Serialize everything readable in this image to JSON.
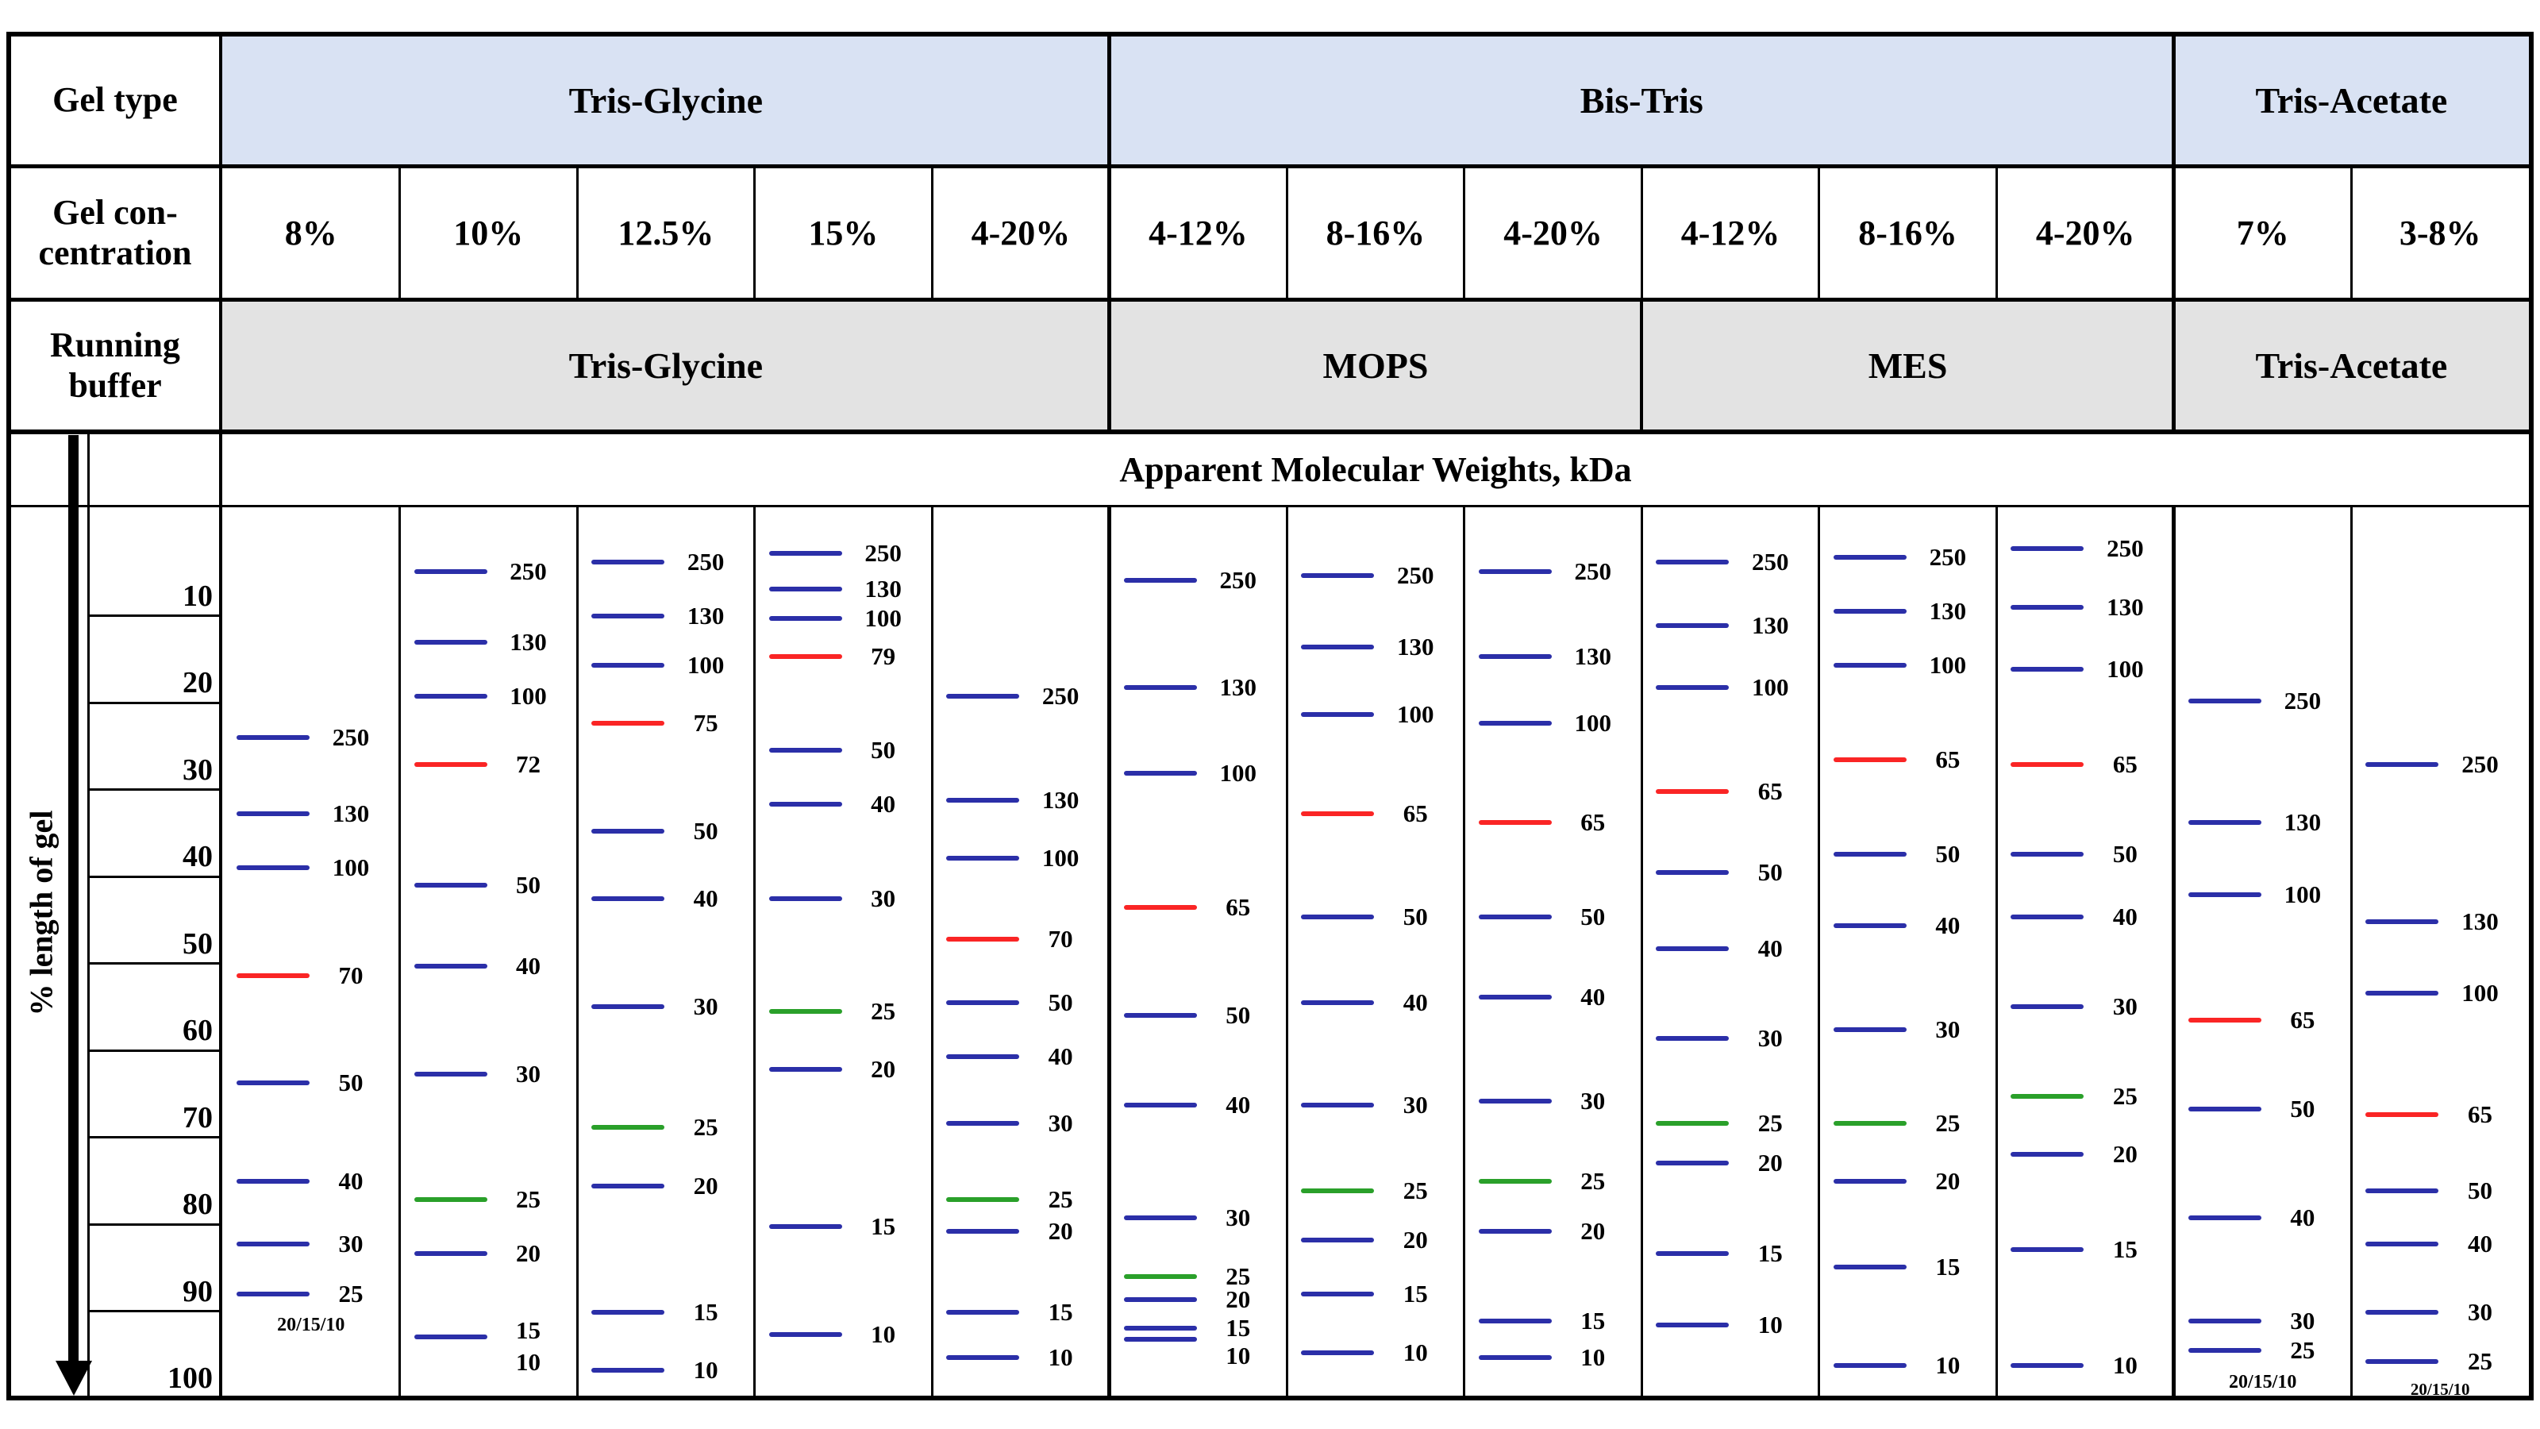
{
  "labels": {
    "gel_type": "Gel type",
    "gel_concentration": "Gel con-\ncentration",
    "running_buffer": "Running\nbuffer"
  },
  "mw_title": "Apparent Molecular Weights, kDa",
  "axis": {
    "label": "% length of gel",
    "ticks": [
      10,
      20,
      30,
      40,
      50,
      60,
      70,
      80,
      90,
      100
    ]
  },
  "gel_type_groups": [
    {
      "label": "Tris-Glycine",
      "start": 0,
      "end": 5
    },
    {
      "label": "Bis-Tris",
      "start": 5,
      "end": 11
    },
    {
      "label": "Tris-Acetate",
      "start": 11,
      "end": 13
    }
  ],
  "running_buffer_groups": [
    {
      "label": "Tris-Glycine",
      "start": 0,
      "end": 5
    },
    {
      "label": "MOPS",
      "start": 5,
      "end": 8
    },
    {
      "label": "MES",
      "start": 8,
      "end": 11
    },
    {
      "label": "Tris-Acetate",
      "start": 11,
      "end": 13
    }
  ],
  "concentrations": [
    "8%",
    "10%",
    "12.5%",
    "15%",
    "4-20%",
    "4-12%",
    "8-16%",
    "4-20%",
    "4-12%",
    "8-16%",
    "4-20%",
    "7%",
    "3-8%"
  ],
  "colors": {
    "header_blue": "#d9e2f3",
    "header_gray": "#e3e3e3",
    "border": "#000000",
    "band_blue": "#2b2fa8",
    "band_red": "#fa2525",
    "band_green": "#2aa02a"
  },
  "chart_data": {
    "type": "table",
    "note_meaning": "bands: kda = molecular weight label, pct = % length of gel from top, color = band color",
    "lanes": [
      {
        "gel": "Tris-Glycine",
        "concentration": "8%",
        "buffer": "Tris-Glycine",
        "bands": [
          {
            "kda": "250",
            "pct": 24,
            "color": "blue"
          },
          {
            "kda": "130",
            "pct": 32.8,
            "color": "blue"
          },
          {
            "kda": "100",
            "pct": 39,
            "color": "blue"
          },
          {
            "kda": "70",
            "pct": 51.4,
            "color": "red"
          },
          {
            "kda": "50",
            "pct": 63.7,
            "color": "blue"
          },
          {
            "kda": "40",
            "pct": 75.1,
            "color": "blue"
          },
          {
            "kda": "30",
            "pct": 82.3,
            "color": "blue"
          },
          {
            "kda": "25",
            "pct": 88,
            "color": "blue"
          }
        ],
        "note": {
          "text": "20/15/10",
          "pct": 91.6
        }
      },
      {
        "gel": "Tris-Glycine",
        "concentration": "10%",
        "buffer": "Tris-Glycine",
        "bands": [
          {
            "kda": "250",
            "pct": 4.9,
            "color": "blue"
          },
          {
            "kda": "130",
            "pct": 13.1,
            "color": "blue"
          },
          {
            "kda": "100",
            "pct": 19.3,
            "color": "blue"
          },
          {
            "kda": "72",
            "pct": 27.1,
            "color": "red"
          },
          {
            "kda": "50",
            "pct": 41,
            "color": "blue"
          },
          {
            "kda": "40",
            "pct": 50.3,
            "color": "blue"
          },
          {
            "kda": "30",
            "pct": 62.7,
            "color": "blue"
          },
          {
            "kda": "25",
            "pct": 77.2,
            "color": "green"
          },
          {
            "kda": "20",
            "pct": 83.4,
            "color": "blue"
          },
          {
            "kda": "15",
            "pct": 93,
            "color": "blue",
            "label_pct": 92.2
          },
          {
            "kda": "10",
            "pct": 95.9,
            "color": "blue",
            "label_only": true
          }
        ]
      },
      {
        "gel": "Tris-Glycine",
        "concentration": "12.5%",
        "buffer": "Tris-Glycine",
        "bands": [
          {
            "kda": "250",
            "pct": 3.8,
            "color": "blue"
          },
          {
            "kda": "130",
            "pct": 10,
            "color": "blue"
          },
          {
            "kda": "100",
            "pct": 15.7,
            "color": "blue"
          },
          {
            "kda": "75",
            "pct": 22.4,
            "color": "red"
          },
          {
            "kda": "50",
            "pct": 34.8,
            "color": "blue"
          },
          {
            "kda": "40",
            "pct": 42.6,
            "color": "blue"
          },
          {
            "kda": "30",
            "pct": 55,
            "color": "blue"
          },
          {
            "kda": "25",
            "pct": 68.9,
            "color": "green"
          },
          {
            "kda": "20",
            "pct": 75.6,
            "color": "blue"
          },
          {
            "kda": "15",
            "pct": 90.1,
            "color": "blue"
          },
          {
            "kda": "10",
            "pct": 96.8,
            "color": "blue"
          }
        ]
      },
      {
        "gel": "Tris-Glycine",
        "concentration": "15%",
        "buffer": "Tris-Glycine",
        "bands": [
          {
            "kda": "250",
            "pct": 2.8,
            "color": "blue"
          },
          {
            "kda": "130",
            "pct": 6.9,
            "color": "blue"
          },
          {
            "kda": "100",
            "pct": 10.3,
            "color": "blue"
          },
          {
            "kda": "79",
            "pct": 14.7,
            "color": "red"
          },
          {
            "kda": "50",
            "pct": 25.5,
            "color": "blue"
          },
          {
            "kda": "40",
            "pct": 31.7,
            "color": "blue"
          },
          {
            "kda": "30",
            "pct": 42.6,
            "color": "blue"
          },
          {
            "kda": "25",
            "pct": 55.5,
            "color": "green"
          },
          {
            "kda": "20",
            "pct": 62.2,
            "color": "blue"
          },
          {
            "kda": "15",
            "pct": 80.3,
            "color": "blue"
          },
          {
            "kda": "10",
            "pct": 92.7,
            "color": "blue"
          }
        ]
      },
      {
        "gel": "Tris-Glycine",
        "concentration": "4-20%",
        "buffer": "Tris-Glycine",
        "bands": [
          {
            "kda": "250",
            "pct": 19.3,
            "color": "blue"
          },
          {
            "kda": "130",
            "pct": 31.2,
            "color": "blue"
          },
          {
            "kda": "100",
            "pct": 37.9,
            "color": "blue"
          },
          {
            "kda": "70",
            "pct": 47.2,
            "color": "red"
          },
          {
            "kda": "50",
            "pct": 54.5,
            "color": "blue"
          },
          {
            "kda": "40",
            "pct": 60.7,
            "color": "blue"
          },
          {
            "kda": "30",
            "pct": 68.4,
            "color": "blue"
          },
          {
            "kda": "25",
            "pct": 77.2,
            "color": "green"
          },
          {
            "kda": "20",
            "pct": 80.8,
            "color": "blue"
          },
          {
            "kda": "15",
            "pct": 90.1,
            "color": "blue"
          },
          {
            "kda": "10",
            "pct": 95.3,
            "color": "blue"
          }
        ]
      },
      {
        "gel": "Bis-Tris",
        "concentration": "4-12%",
        "buffer": "MOPS",
        "bands": [
          {
            "kda": "250",
            "pct": 5.9,
            "color": "blue"
          },
          {
            "kda": "130",
            "pct": 18.3,
            "color": "blue"
          },
          {
            "kda": "100",
            "pct": 28.1,
            "color": "blue"
          },
          {
            "kda": "65",
            "pct": 43.6,
            "color": "red"
          },
          {
            "kda": "50",
            "pct": 56,
            "color": "blue"
          },
          {
            "kda": "40",
            "pct": 66.3,
            "color": "blue"
          },
          {
            "kda": "30",
            "pct": 79.3,
            "color": "blue"
          },
          {
            "kda": "25",
            "pct": 86,
            "color": "green"
          },
          {
            "kda": "20",
            "pct": 88.7,
            "color": "blue"
          },
          {
            "kda": "15",
            "pct": 92,
            "color": "blue"
          },
          {
            "kda": "10",
            "pct": 93.2,
            "color": "blue",
            "label_pct": 95.2
          }
        ]
      },
      {
        "gel": "Bis-Tris",
        "concentration": "8-16%",
        "buffer": "MOPS",
        "bands": [
          {
            "kda": "250",
            "pct": 5.4,
            "color": "blue"
          },
          {
            "kda": "130",
            "pct": 13.6,
            "color": "blue"
          },
          {
            "kda": "100",
            "pct": 21.4,
            "color": "blue"
          },
          {
            "kda": "65",
            "pct": 32.8,
            "color": "red"
          },
          {
            "kda": "50",
            "pct": 44.7,
            "color": "blue"
          },
          {
            "kda": "40",
            "pct": 54.5,
            "color": "blue"
          },
          {
            "kda": "30",
            "pct": 66.3,
            "color": "blue"
          },
          {
            "kda": "25",
            "pct": 76.2,
            "color": "green"
          },
          {
            "kda": "20",
            "pct": 81.8,
            "color": "blue"
          },
          {
            "kda": "15",
            "pct": 88,
            "color": "blue"
          },
          {
            "kda": "10",
            "pct": 94.8,
            "color": "blue"
          }
        ]
      },
      {
        "gel": "Bis-Tris",
        "concentration": "4-20%",
        "buffer": "MOPS",
        "bands": [
          {
            "kda": "250",
            "pct": 4.9,
            "color": "blue"
          },
          {
            "kda": "130",
            "pct": 14.7,
            "color": "blue"
          },
          {
            "kda": "100",
            "pct": 22.4,
            "color": "blue"
          },
          {
            "kda": "65",
            "pct": 33.8,
            "color": "red"
          },
          {
            "kda": "50",
            "pct": 44.7,
            "color": "blue"
          },
          {
            "kda": "40",
            "pct": 53.9,
            "color": "blue"
          },
          {
            "kda": "30",
            "pct": 65.8,
            "color": "blue"
          },
          {
            "kda": "25",
            "pct": 75.1,
            "color": "green"
          },
          {
            "kda": "20",
            "pct": 80.8,
            "color": "blue"
          },
          {
            "kda": "15",
            "pct": 91.1,
            "color": "blue"
          },
          {
            "kda": "10",
            "pct": 95.3,
            "color": "blue"
          }
        ]
      },
      {
        "gel": "Bis-Tris",
        "concentration": "4-12%",
        "buffer": "MES",
        "bands": [
          {
            "kda": "250",
            "pct": 3.8,
            "color": "blue"
          },
          {
            "kda": "130",
            "pct": 11.1,
            "color": "blue"
          },
          {
            "kda": "100",
            "pct": 18.3,
            "color": "blue"
          },
          {
            "kda": "65",
            "pct": 30.2,
            "color": "red"
          },
          {
            "kda": "50",
            "pct": 39.5,
            "color": "blue"
          },
          {
            "kda": "40",
            "pct": 48.3,
            "color": "blue"
          },
          {
            "kda": "30",
            "pct": 58.6,
            "color": "blue"
          },
          {
            "kda": "25",
            "pct": 68.4,
            "color": "green"
          },
          {
            "kda": "20",
            "pct": 73,
            "color": "blue"
          },
          {
            "kda": "15",
            "pct": 83.4,
            "color": "blue"
          },
          {
            "kda": "10",
            "pct": 91.6,
            "color": "blue"
          }
        ]
      },
      {
        "gel": "Bis-Tris",
        "concentration": "8-16%",
        "buffer": "MES",
        "bands": [
          {
            "kda": "250",
            "pct": 3.3,
            "color": "blue"
          },
          {
            "kda": "130",
            "pct": 9.5,
            "color": "blue"
          },
          {
            "kda": "100",
            "pct": 15.7,
            "color": "blue"
          },
          {
            "kda": "65",
            "pct": 26.6,
            "color": "red"
          },
          {
            "kda": "50",
            "pct": 37.4,
            "color": "blue"
          },
          {
            "kda": "40",
            "pct": 45.7,
            "color": "blue"
          },
          {
            "kda": "30",
            "pct": 57.6,
            "color": "blue"
          },
          {
            "kda": "25",
            "pct": 68.4,
            "color": "green"
          },
          {
            "kda": "20",
            "pct": 75.1,
            "color": "blue"
          },
          {
            "kda": "15",
            "pct": 84.9,
            "color": "blue"
          },
          {
            "kda": "10",
            "pct": 96.3,
            "color": "blue"
          }
        ]
      },
      {
        "gel": "Bis-Tris",
        "concentration": "4-20%",
        "buffer": "MES",
        "bands": [
          {
            "kda": "250",
            "pct": 2.3,
            "color": "blue"
          },
          {
            "kda": "130",
            "pct": 9,
            "color": "blue"
          },
          {
            "kda": "100",
            "pct": 16.2,
            "color": "blue"
          },
          {
            "kda": "65",
            "pct": 27.1,
            "color": "red"
          },
          {
            "kda": "50",
            "pct": 37.4,
            "color": "blue"
          },
          {
            "kda": "40",
            "pct": 44.7,
            "color": "blue"
          },
          {
            "kda": "30",
            "pct": 55,
            "color": "blue"
          },
          {
            "kda": "25",
            "pct": 65.3,
            "color": "green"
          },
          {
            "kda": "20",
            "pct": 72,
            "color": "blue"
          },
          {
            "kda": "15",
            "pct": 82.9,
            "color": "blue"
          },
          {
            "kda": "10",
            "pct": 96.3,
            "color": "blue"
          }
        ]
      },
      {
        "gel": "Tris-Acetate",
        "concentration": "7%",
        "buffer": "Tris-Acetate",
        "bands": [
          {
            "kda": "250",
            "pct": 19.8,
            "color": "blue"
          },
          {
            "kda": "130",
            "pct": 33.8,
            "color": "blue"
          },
          {
            "kda": "100",
            "pct": 42.1,
            "color": "blue"
          },
          {
            "kda": "65",
            "pct": 56.5,
            "color": "red"
          },
          {
            "kda": "50",
            "pct": 66.8,
            "color": "blue"
          },
          {
            "kda": "40",
            "pct": 79.3,
            "color": "blue"
          },
          {
            "kda": "30",
            "pct": 91.1,
            "color": "blue"
          },
          {
            "kda": "25",
            "pct": 94.5,
            "color": "blue"
          }
        ],
        "note": {
          "text": "20/15/10",
          "pct": 98.2
        }
      },
      {
        "gel": "Tris-Acetate",
        "concentration": "3-8%",
        "buffer": "Tris-Acetate",
        "bands": [
          {
            "kda": "250",
            "pct": 27.1,
            "color": "blue"
          },
          {
            "kda": "130",
            "pct": 45.2,
            "color": "blue"
          },
          {
            "kda": "100",
            "pct": 53.4,
            "color": "blue"
          },
          {
            "kda": "65",
            "pct": 67.4,
            "color": "red"
          },
          {
            "kda": "50",
            "pct": 76.2,
            "color": "blue"
          },
          {
            "kda": "40",
            "pct": 82.3,
            "color": "blue"
          },
          {
            "kda": "30",
            "pct": 90.1,
            "color": "blue"
          },
          {
            "kda": "25",
            "pct": 95.8,
            "color": "blue"
          }
        ],
        "note": {
          "text": "20/15/10",
          "pct": 99.0,
          "small": true
        }
      }
    ]
  }
}
